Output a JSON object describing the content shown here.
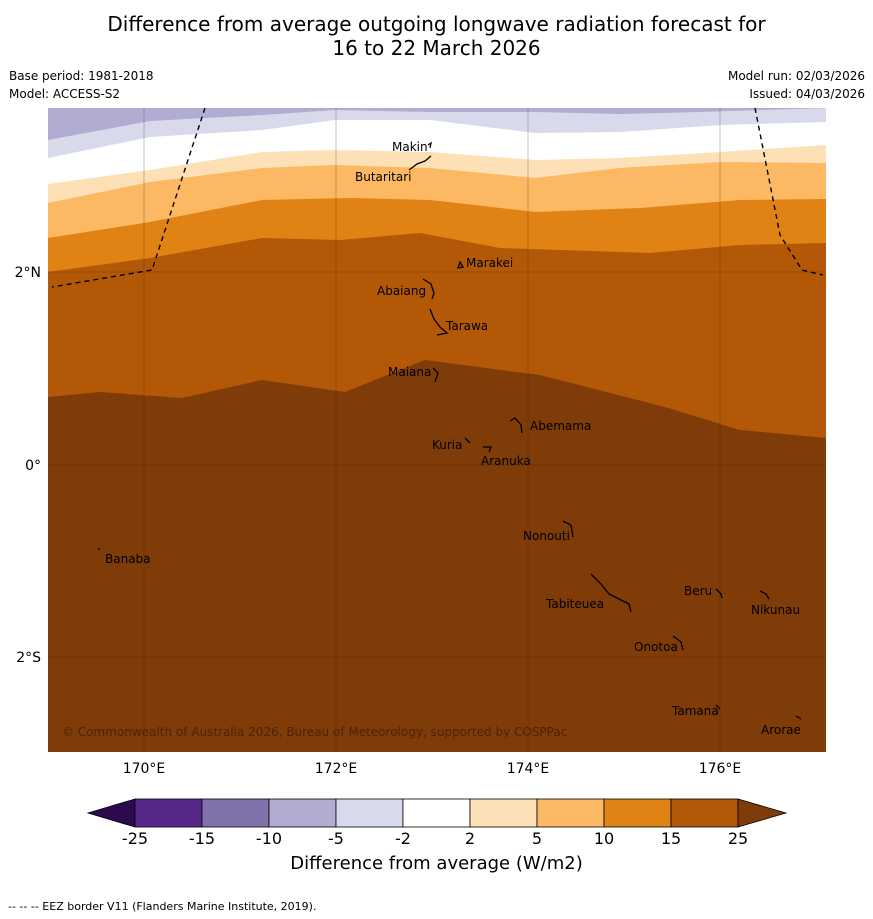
{
  "title": {
    "line1": "Difference from average outgoing longwave radiation forecast for",
    "line2": "16 to 22 March 2026"
  },
  "meta": {
    "base_period": "Base period: 1981-2018",
    "model": "Model: ACCESS-S2",
    "model_run": "Model run: 02/03/2026",
    "issued": "Issued: 04/03/2026"
  },
  "axes": {
    "x_ticks": [
      "170°E",
      "172°E",
      "174°E",
      "176°E"
    ],
    "y_ticks": [
      "2°N",
      "0°",
      "2°S"
    ]
  },
  "islands": {
    "makin": "Makin",
    "butaritari": "Butaritari",
    "marakei": "Marakei",
    "abaiang": "Abaiang",
    "tarawa": "Tarawa",
    "maiana": "Maiana",
    "abemama": "Abemama",
    "kuria": "Kuria",
    "aranuka": "Aranuka",
    "nonouti": "Nonouti",
    "banaba": "Banaba",
    "beru": "Beru",
    "tabiteuea": "Tabiteuea",
    "nikunau": "Nikunau",
    "onotoa": "Onotoa",
    "tamana": "Tamana",
    "arorae": "Arorae"
  },
  "copyright": "© Commonwealth of Australia 2026, Bureau of Meteorology, supported by COSPPac",
  "colorbar": {
    "ticks": [
      "-25",
      "-15",
      "-10",
      "-5",
      "-2",
      "2",
      "5",
      "10",
      "15",
      "25"
    ],
    "colors": {
      "lt_neg25": "#2d0a4e",
      "neg25_neg15": "#542788",
      "neg15_neg10": "#8073ac",
      "neg10_neg5": "#b2abd2",
      "neg5_neg2": "#d8daeb",
      "neg2_2": "#ffffff",
      "p2_5": "#fee0b6",
      "p5_10": "#fdb863",
      "p10_15": "#e08214",
      "p15_25": "#b35806",
      "gt_25": "#7f3b08"
    },
    "label": "Difference from average (W/m2)"
  },
  "footer": "--  --  -- EEZ border V11 (Flanders Marine Institute, 2019)."
}
